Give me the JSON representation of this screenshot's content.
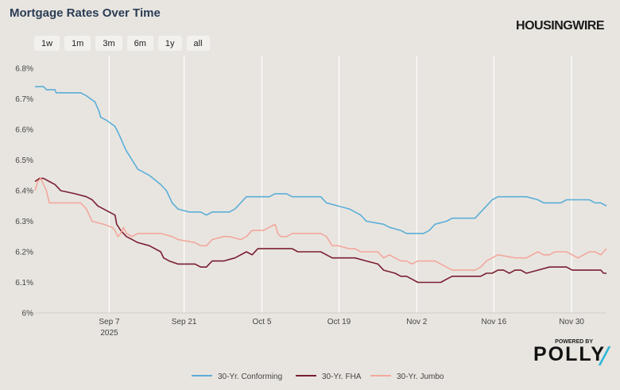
{
  "header": {
    "title": "Mortgage Rates Over Time",
    "brand": "HOUSINGWIRE"
  },
  "range_buttons": [
    "1w",
    "1m",
    "3m",
    "6m",
    "1y",
    "all"
  ],
  "footer": {
    "powered_by": "POWERED BY",
    "logo": "POLLY",
    "accent_color": "#2fb8d8"
  },
  "chart_data": {
    "type": "line",
    "title": "Mortgage Rates Over Time",
    "xlabel": "",
    "ylabel": "",
    "x_range": [
      0,
      100
    ],
    "ylim": [
      6.0,
      6.8
    ],
    "y_ticks": [
      {
        "v": 6.0,
        "label": "6%"
      },
      {
        "v": 6.1,
        "label": "6.1%"
      },
      {
        "v": 6.2,
        "label": "6.2%"
      },
      {
        "v": 6.3,
        "label": "6.3%"
      },
      {
        "v": 6.4,
        "label": "6.4%"
      },
      {
        "v": 6.5,
        "label": "6.5%"
      },
      {
        "v": 6.6,
        "label": "6.6%"
      },
      {
        "v": 6.7,
        "label": "6.7%"
      },
      {
        "v": 6.8,
        "label": "6.8%"
      }
    ],
    "x_ticks": [
      {
        "x": 13.0,
        "label": "Sep 7",
        "sub": "2025"
      },
      {
        "x": 26.1,
        "label": "Sep 21",
        "sub": ""
      },
      {
        "x": 39.7,
        "label": "Oct 5",
        "sub": ""
      },
      {
        "x": 53.2,
        "label": "Oct 19",
        "sub": ""
      },
      {
        "x": 66.8,
        "label": "Nov 2",
        "sub": ""
      },
      {
        "x": 80.3,
        "label": "Nov 16",
        "sub": ""
      },
      {
        "x": 93.9,
        "label": "Nov 30",
        "sub": ""
      }
    ],
    "grid": true,
    "legend_position": "bottom-center",
    "series": [
      {
        "name": "30-Yr. Conforming",
        "color": "#5aaed8",
        "points": [
          [
            0,
            6.74
          ],
          [
            1.5,
            6.74
          ],
          [
            2,
            6.73
          ],
          [
            3.5,
            6.73
          ],
          [
            3.7,
            6.72
          ],
          [
            8,
            6.72
          ],
          [
            9,
            6.71
          ],
          [
            10.5,
            6.69
          ],
          [
            11.2,
            6.66
          ],
          [
            11.5,
            6.64
          ],
          [
            12.5,
            6.63
          ],
          [
            14,
            6.61
          ],
          [
            14.8,
            6.58
          ],
          [
            15.5,
            6.55
          ],
          [
            16,
            6.53
          ],
          [
            17,
            6.5
          ],
          [
            18,
            6.47
          ],
          [
            20,
            6.45
          ],
          [
            22,
            6.42
          ],
          [
            23,
            6.4
          ],
          [
            24,
            6.36
          ],
          [
            25,
            6.34
          ],
          [
            27,
            6.33
          ],
          [
            29,
            6.33
          ],
          [
            30,
            6.32
          ],
          [
            31,
            6.33
          ],
          [
            34,
            6.33
          ],
          [
            35,
            6.34
          ],
          [
            36,
            6.36
          ],
          [
            37,
            6.38
          ],
          [
            41,
            6.38
          ],
          [
            42,
            6.39
          ],
          [
            44,
            6.39
          ],
          [
            45,
            6.38
          ],
          [
            50,
            6.38
          ],
          [
            51,
            6.36
          ],
          [
            55,
            6.34
          ],
          [
            57,
            6.32
          ],
          [
            58,
            6.3
          ],
          [
            61,
            6.29
          ],
          [
            62,
            6.28
          ],
          [
            64,
            6.27
          ],
          [
            65,
            6.26
          ],
          [
            68,
            6.26
          ],
          [
            69,
            6.27
          ],
          [
            70,
            6.29
          ],
          [
            72,
            6.3
          ],
          [
            73,
            6.31
          ],
          [
            77,
            6.31
          ],
          [
            78,
            6.33
          ],
          [
            79,
            6.35
          ],
          [
            80,
            6.37
          ],
          [
            81,
            6.38
          ],
          [
            86,
            6.38
          ],
          [
            88,
            6.37
          ],
          [
            89,
            6.36
          ],
          [
            92,
            6.36
          ],
          [
            93,
            6.37
          ],
          [
            97,
            6.37
          ],
          [
            98,
            6.36
          ],
          [
            99,
            6.36
          ],
          [
            100,
            6.35
          ]
        ]
      },
      {
        "name": "30-Yr. FHA",
        "color": "#7a1e30",
        "points": [
          [
            0,
            6.43
          ],
          [
            0.8,
            6.44
          ],
          [
            1.5,
            6.44
          ],
          [
            2.5,
            6.43
          ],
          [
            3.5,
            6.42
          ],
          [
            4.5,
            6.4
          ],
          [
            7,
            6.39
          ],
          [
            9,
            6.38
          ],
          [
            10,
            6.37
          ],
          [
            11,
            6.35
          ],
          [
            13,
            6.33
          ],
          [
            14,
            6.32
          ],
          [
            14.3,
            6.29
          ],
          [
            15,
            6.27
          ],
          [
            16,
            6.25
          ],
          [
            17,
            6.24
          ],
          [
            18,
            6.23
          ],
          [
            20,
            6.22
          ],
          [
            22,
            6.2
          ],
          [
            22.5,
            6.18
          ],
          [
            23.5,
            6.17
          ],
          [
            25,
            6.16
          ],
          [
            28,
            6.16
          ],
          [
            29,
            6.15
          ],
          [
            30,
            6.15
          ],
          [
            31,
            6.17
          ],
          [
            33,
            6.17
          ],
          [
            35,
            6.18
          ],
          [
            37,
            6.2
          ],
          [
            38,
            6.19
          ],
          [
            39,
            6.21
          ],
          [
            45,
            6.21
          ],
          [
            46,
            6.2
          ],
          [
            50,
            6.2
          ],
          [
            51,
            6.19
          ],
          [
            52,
            6.18
          ],
          [
            56,
            6.18
          ],
          [
            58,
            6.17
          ],
          [
            60,
            6.16
          ],
          [
            61,
            6.14
          ],
          [
            63,
            6.13
          ],
          [
            64,
            6.12
          ],
          [
            65,
            6.12
          ],
          [
            66,
            6.11
          ],
          [
            67,
            6.1
          ],
          [
            71,
            6.1
          ],
          [
            72,
            6.11
          ],
          [
            73,
            6.12
          ],
          [
            78,
            6.12
          ],
          [
            79,
            6.13
          ],
          [
            80,
            6.13
          ],
          [
            81,
            6.14
          ],
          [
            82,
            6.14
          ],
          [
            83,
            6.13
          ],
          [
            84,
            6.14
          ],
          [
            85,
            6.14
          ],
          [
            86,
            6.13
          ],
          [
            88,
            6.14
          ],
          [
            90,
            6.15
          ],
          [
            93,
            6.15
          ],
          [
            94,
            6.14
          ],
          [
            99,
            6.14
          ],
          [
            99.5,
            6.13
          ],
          [
            100,
            6.13
          ]
        ]
      },
      {
        "name": "30-Yr. Jumbo",
        "color": "#f3a79c",
        "points": [
          [
            0,
            6.4
          ],
          [
            0.5,
            6.43
          ],
          [
            1,
            6.44
          ],
          [
            1.5,
            6.42
          ],
          [
            2,
            6.4
          ],
          [
            2.5,
            6.36
          ],
          [
            3.5,
            6.36
          ],
          [
            8,
            6.36
          ],
          [
            9,
            6.34
          ],
          [
            10,
            6.3
          ],
          [
            12,
            6.29
          ],
          [
            13.5,
            6.28
          ],
          [
            14,
            6.27
          ],
          [
            14.5,
            6.25
          ],
          [
            15,
            6.26
          ],
          [
            15.5,
            6.28
          ],
          [
            16,
            6.26
          ],
          [
            17,
            6.25
          ],
          [
            18,
            6.26
          ],
          [
            22,
            6.26
          ],
          [
            24,
            6.25
          ],
          [
            25,
            6.24
          ],
          [
            28,
            6.23
          ],
          [
            29,
            6.22
          ],
          [
            30,
            6.22
          ],
          [
            31,
            6.24
          ],
          [
            33,
            6.25
          ],
          [
            34,
            6.25
          ],
          [
            36,
            6.24
          ],
          [
            37,
            6.25
          ],
          [
            38,
            6.27
          ],
          [
            40,
            6.27
          ],
          [
            41,
            6.28
          ],
          [
            42,
            6.29
          ],
          [
            42.5,
            6.26
          ],
          [
            43,
            6.25
          ],
          [
            44,
            6.25
          ],
          [
            45,
            6.26
          ],
          [
            46,
            6.26
          ],
          [
            48,
            6.26
          ],
          [
            50,
            6.26
          ],
          [
            51,
            6.25
          ],
          [
            52,
            6.22
          ],
          [
            53,
            6.22
          ],
          [
            55,
            6.21
          ],
          [
            56,
            6.21
          ],
          [
            57,
            6.2
          ],
          [
            58,
            6.2
          ],
          [
            60,
            6.2
          ],
          [
            61,
            6.18
          ],
          [
            62,
            6.19
          ],
          [
            63,
            6.18
          ],
          [
            64,
            6.17
          ],
          [
            65,
            6.17
          ],
          [
            66,
            6.16
          ],
          [
            67,
            6.17
          ],
          [
            70,
            6.17
          ],
          [
            71,
            6.16
          ],
          [
            72,
            6.15
          ],
          [
            73,
            6.14
          ],
          [
            77,
            6.14
          ],
          [
            78,
            6.15
          ],
          [
            79,
            6.17
          ],
          [
            80,
            6.18
          ],
          [
            81,
            6.19
          ],
          [
            84,
            6.18
          ],
          [
            86,
            6.18
          ],
          [
            87,
            6.19
          ],
          [
            88,
            6.2
          ],
          [
            89,
            6.19
          ],
          [
            90,
            6.19
          ],
          [
            91,
            6.2
          ],
          [
            93,
            6.2
          ],
          [
            94,
            6.19
          ],
          [
            95,
            6.18
          ],
          [
            96,
            6.19
          ],
          [
            97,
            6.2
          ],
          [
            98,
            6.2
          ],
          [
            99,
            6.19
          ],
          [
            99.5,
            6.2
          ],
          [
            100,
            6.21
          ]
        ]
      }
    ]
  }
}
